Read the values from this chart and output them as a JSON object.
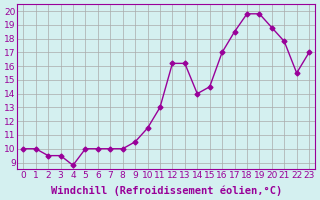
{
  "x": [
    0,
    1,
    2,
    3,
    4,
    5,
    6,
    7,
    8,
    9,
    10,
    11,
    12,
    13,
    14,
    15,
    16,
    17,
    18,
    19,
    20,
    21,
    22,
    23
  ],
  "y": [
    10,
    10,
    9.5,
    9.5,
    8.8,
    10,
    10,
    10,
    10,
    10.5,
    11.5,
    13,
    16.2,
    16.2,
    14,
    14.5,
    17,
    18.5,
    19.8,
    19.8,
    18.8,
    17.8,
    15.5,
    17.0
  ],
  "xlabel": "Windchill (Refroidissement éolien,°C)",
  "ylim": [
    8.5,
    20.5
  ],
  "xlim": [
    -0.5,
    23.5
  ],
  "line_color": "#990099",
  "bg_color": "#d4f0f0",
  "grid_color": "#aaaaaa",
  "yticks": [
    9,
    10,
    11,
    12,
    13,
    14,
    15,
    16,
    17,
    18,
    19,
    20
  ],
  "xticks": [
    0,
    1,
    2,
    3,
    4,
    5,
    6,
    7,
    8,
    9,
    10,
    11,
    12,
    13,
    14,
    15,
    16,
    17,
    18,
    19,
    20,
    21,
    22,
    23
  ],
  "tick_fontsize": 6.5,
  "label_fontsize": 7.5
}
